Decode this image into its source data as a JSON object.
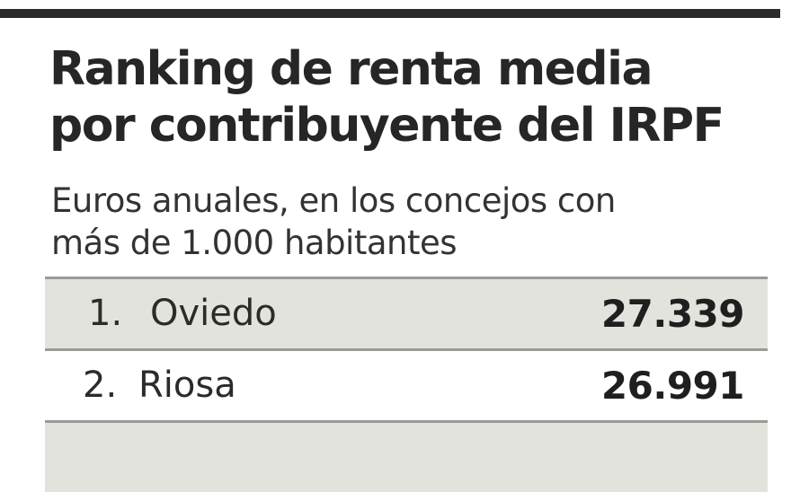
{
  "chart_data": {
    "type": "table",
    "title": "Ranking de renta media\npor contribuyente del IRPF",
    "subtitle": "Euros anuales, en los concejos con\nmás de 1.000 habitantes",
    "rows": [
      {
        "rank": "1.",
        "name": "Oviedo",
        "value": "27.339"
      },
      {
        "rank": "2.",
        "name": "Riosa",
        "value": "26.991"
      },
      {
        "rank": "",
        "name": "",
        "value": ""
      }
    ]
  },
  "colors": {
    "text": "#2b2b2b",
    "shaded_row": "#e3e3dd",
    "row_rule": "#9a9a96"
  }
}
